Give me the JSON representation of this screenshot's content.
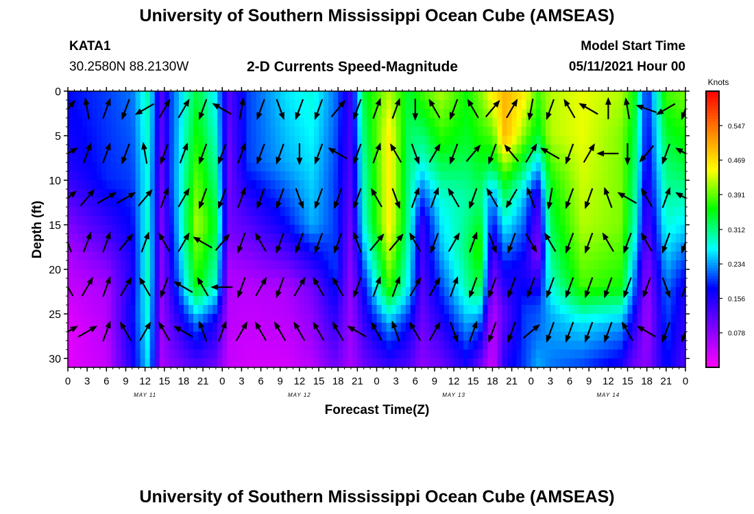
{
  "header": {
    "title_top": "University of Southern Mississippi Ocean Cube (AMSEAS)",
    "station": "KATA1",
    "coords": "30.2580N  88.2130W",
    "product": "2-D Currents Speed-Magnitude",
    "model_start_label": "Model Start Time",
    "model_start_value": "05/11/2021 Hour 00",
    "title_bottom": "University of Southern Mississippi Ocean Cube (AMSEAS)"
  },
  "chart_data": {
    "type": "heatmap",
    "xlabel": "Forecast Time(Z)",
    "ylabel": "Depth (ft)",
    "x_tick_labels": [
      "0",
      "3",
      "6",
      "9",
      "12",
      "15",
      "18",
      "21",
      "0",
      "3",
      "6",
      "9",
      "12",
      "15",
      "18",
      "21",
      "0",
      "3",
      "6",
      "9",
      "12",
      "15",
      "18",
      "21",
      "0",
      "3",
      "6",
      "9",
      "12",
      "15",
      "18",
      "21",
      "0"
    ],
    "x_hours_range": [
      0,
      96
    ],
    "day_labels": [
      {
        "hour": 12,
        "label": "MAY 11"
      },
      {
        "hour": 36,
        "label": "MAY 12"
      },
      {
        "hour": 60,
        "label": "MAY 13"
      },
      {
        "hour": 84,
        "label": "MAY 14"
      }
    ],
    "y_ticks": [
      0,
      5,
      10,
      15,
      20,
      25,
      30
    ],
    "y_tick_labels": [
      "0",
      "5",
      "10",
      "15",
      "20",
      "25",
      "30"
    ],
    "ylim": [
      0,
      31
    ],
    "y_inverted": true,
    "colorbar": {
      "unit_label": "Knots",
      "tick_values": [
        0.078,
        0.156,
        0.234,
        0.312,
        0.391,
        0.469,
        0.547
      ],
      "tick_labels": [
        "0.078",
        "0.156",
        "0.234",
        "0.312",
        "0.391",
        "0.469",
        "0.547"
      ],
      "range": [
        0,
        0.625
      ],
      "colors": [
        "#ff00ff",
        "#8000ff",
        "#0000ff",
        "#00ffff",
        "#00ff00",
        "#ffff00",
        "#ff8000",
        "#ff0000"
      ]
    },
    "speed_profiles": [
      {
        "hour": 0,
        "d": [
          0,
          8,
          12,
          18,
          22,
          26,
          31
        ],
        "s": [
          0.18,
          0.16,
          0.12,
          0.06,
          0.04,
          0.02,
          0.02
        ]
      },
      {
        "hour": 6,
        "d": [
          0,
          10,
          15,
          22,
          31
        ],
        "s": [
          0.2,
          0.19,
          0.14,
          0.06,
          0.04
        ]
      },
      {
        "hour": 10,
        "d": [
          0,
          10,
          20,
          25,
          31
        ],
        "s": [
          0.22,
          0.2,
          0.16,
          0.18,
          0.16
        ]
      },
      {
        "hour": 12.5,
        "d": [
          0,
          10,
          20,
          31
        ],
        "s": [
          0.3,
          0.28,
          0.3,
          0.26
        ]
      },
      {
        "hour": 14.5,
        "d": [
          0,
          10,
          20,
          31
        ],
        "s": [
          0.12,
          0.1,
          0.08,
          0.06
        ]
      },
      {
        "hour": 16,
        "d": [
          0,
          10,
          20,
          31
        ],
        "s": [
          0.2,
          0.2,
          0.16,
          0.08
        ]
      },
      {
        "hour": 20,
        "d": [
          0,
          8,
          15,
          22,
          26,
          31
        ],
        "s": [
          0.34,
          0.38,
          0.42,
          0.36,
          0.22,
          0.12
        ]
      },
      {
        "hour": 23,
        "d": [
          0,
          8,
          15,
          22,
          26,
          31
        ],
        "s": [
          0.26,
          0.3,
          0.34,
          0.28,
          0.16,
          0.1
        ]
      },
      {
        "hour": 25,
        "d": [
          0,
          8,
          15,
          20,
          25,
          31
        ],
        "s": [
          0.12,
          0.1,
          0.1,
          0.06,
          0.05,
          0.04
        ]
      },
      {
        "hour": 28,
        "d": [
          0,
          8,
          15,
          22,
          31
        ],
        "s": [
          0.2,
          0.2,
          0.12,
          0.05,
          0.03
        ]
      },
      {
        "hour": 34,
        "d": [
          0,
          8,
          15,
          22,
          31
        ],
        "s": [
          0.26,
          0.24,
          0.18,
          0.06,
          0.03
        ]
      },
      {
        "hour": 38,
        "d": [
          0,
          8,
          15,
          22,
          31
        ],
        "s": [
          0.28,
          0.26,
          0.24,
          0.1,
          0.05
        ]
      },
      {
        "hour": 41.5,
        "d": [
          0,
          10,
          20,
          31
        ],
        "s": [
          0.22,
          0.2,
          0.2,
          0.1
        ]
      },
      {
        "hour": 44,
        "d": [
          0,
          10,
          20,
          31
        ],
        "s": [
          0.14,
          0.12,
          0.08,
          0.06
        ]
      },
      {
        "hour": 46,
        "d": [
          0,
          8,
          15,
          22,
          31
        ],
        "s": [
          0.34,
          0.3,
          0.28,
          0.18,
          0.1
        ]
      },
      {
        "hour": 50,
        "d": [
          0,
          5,
          15,
          22,
          26,
          31
        ],
        "s": [
          0.42,
          0.46,
          0.46,
          0.38,
          0.24,
          0.14
        ]
      },
      {
        "hour": 53,
        "d": [
          0,
          5,
          15,
          22,
          26,
          31
        ],
        "s": [
          0.34,
          0.32,
          0.3,
          0.26,
          0.18,
          0.12
        ]
      },
      {
        "hour": 55,
        "d": [
          0,
          8,
          15,
          22,
          31
        ],
        "s": [
          0.38,
          0.28,
          0.14,
          0.12,
          0.08
        ]
      },
      {
        "hour": 58,
        "d": [
          0,
          6,
          12,
          18,
          22,
          31
        ],
        "s": [
          0.42,
          0.36,
          0.28,
          0.24,
          0.2,
          0.1
        ]
      },
      {
        "hour": 62,
        "d": [
          0,
          6,
          12,
          18,
          22,
          31
        ],
        "s": [
          0.36,
          0.34,
          0.3,
          0.32,
          0.3,
          0.16
        ]
      },
      {
        "hour": 64,
        "d": [
          0,
          6,
          12,
          18,
          22,
          26,
          31
        ],
        "s": [
          0.4,
          0.36,
          0.32,
          0.38,
          0.34,
          0.22,
          0.1
        ]
      },
      {
        "hour": 66,
        "d": [
          0,
          8,
          12,
          20,
          25,
          31
        ],
        "s": [
          0.46,
          0.34,
          0.22,
          0.1,
          0.05,
          0.03
        ]
      },
      {
        "hour": 68,
        "d": [
          0,
          5,
          10,
          20,
          25,
          31
        ],
        "s": [
          0.5,
          0.5,
          0.36,
          0.18,
          0.12,
          0.16
        ]
      },
      {
        "hour": 71,
        "d": [
          0,
          5,
          12,
          20,
          25,
          31
        ],
        "s": [
          0.46,
          0.4,
          0.24,
          0.16,
          0.2,
          0.2
        ]
      },
      {
        "hour": 73,
        "d": [
          0,
          5,
          12,
          18,
          24,
          31
        ],
        "s": [
          0.38,
          0.34,
          0.14,
          0.08,
          0.2,
          0.24
        ]
      },
      {
        "hour": 75,
        "d": [
          0,
          5,
          10,
          20,
          25,
          31
        ],
        "s": [
          0.42,
          0.42,
          0.36,
          0.3,
          0.24,
          0.22
        ]
      },
      {
        "hour": 80,
        "d": [
          0,
          5,
          15,
          22,
          26,
          31
        ],
        "s": [
          0.44,
          0.44,
          0.42,
          0.38,
          0.26,
          0.2
        ]
      },
      {
        "hour": 86,
        "d": [
          0,
          5,
          15,
          22,
          26,
          31
        ],
        "s": [
          0.42,
          0.4,
          0.4,
          0.36,
          0.24,
          0.16
        ]
      },
      {
        "hour": 88,
        "d": [
          0,
          5,
          15,
          22,
          26,
          31
        ],
        "s": [
          0.36,
          0.34,
          0.3,
          0.22,
          0.16,
          0.1
        ]
      },
      {
        "hour": 90,
        "d": [
          0,
          8,
          15,
          20,
          25,
          31
        ],
        "s": [
          0.18,
          0.16,
          0.12,
          0.08,
          0.06,
          0.08
        ]
      },
      {
        "hour": 93,
        "d": [
          0,
          8,
          15,
          22,
          31
        ],
        "s": [
          0.38,
          0.32,
          0.28,
          0.22,
          0.18
        ]
      },
      {
        "hour": 96,
        "d": [
          0,
          8,
          15,
          22,
          31
        ],
        "s": [
          0.4,
          0.34,
          0.26,
          0.16,
          0.12
        ]
      }
    ],
    "arrow_grid": {
      "hours_start": 0,
      "hours_step": 3,
      "hours_count": 33,
      "depths": [
        2,
        7,
        12,
        17,
        22,
        27
      ],
      "directions_deg": [
        [
          40,
          -10,
          20,
          200,
          240,
          30,
          30,
          200,
          300,
          10,
          200,
          160,
          200,
          200,
          40,
          200,
          20,
          20,
          180,
          330,
          200,
          330,
          40,
          30,
          190,
          200,
          330,
          300,
          0,
          350,
          290,
          240,
          200
        ],
        [
          60,
          20,
          20,
          200,
          350,
          200,
          20,
          200,
          200,
          20,
          200,
          200,
          180,
          200,
          300,
          200,
          20,
          330,
          160,
          30,
          200,
          40,
          200,
          320,
          30,
          300,
          200,
          30,
          270,
          180,
          220,
          200,
          300
        ],
        [
          50,
          40,
          60,
          60,
          40,
          20,
          30,
          200,
          200,
          20,
          200,
          200,
          160,
          200,
          200,
          200,
          330,
          160,
          20,
          20,
          330,
          200,
          330,
          210,
          340,
          190,
          200,
          200,
          340,
          300,
          330,
          20,
          300
        ],
        [
          340,
          20,
          20,
          40,
          20,
          330,
          30,
          300,
          40,
          200,
          330,
          200,
          200,
          200,
          200,
          340,
          40,
          40,
          330,
          200,
          30,
          20,
          160,
          200,
          150,
          330,
          200,
          200,
          330,
          200,
          330,
          200,
          200
        ],
        [
          330,
          30,
          20,
          30,
          330,
          200,
          300,
          330,
          270,
          200,
          30,
          200,
          30,
          330,
          330,
          200,
          20,
          20,
          30,
          30,
          20,
          200,
          200,
          200,
          200,
          200,
          200,
          200,
          200,
          200,
          200,
          160,
          20
        ],
        [
          60,
          60,
          20,
          330,
          30,
          330,
          300,
          340,
          20,
          30,
          330,
          330,
          330,
          330,
          330,
          300,
          330,
          340,
          330,
          30,
          160,
          20,
          200,
          200,
          50,
          200,
          200,
          200,
          200,
          330,
          300,
          200,
          200
        ]
      ]
    }
  }
}
